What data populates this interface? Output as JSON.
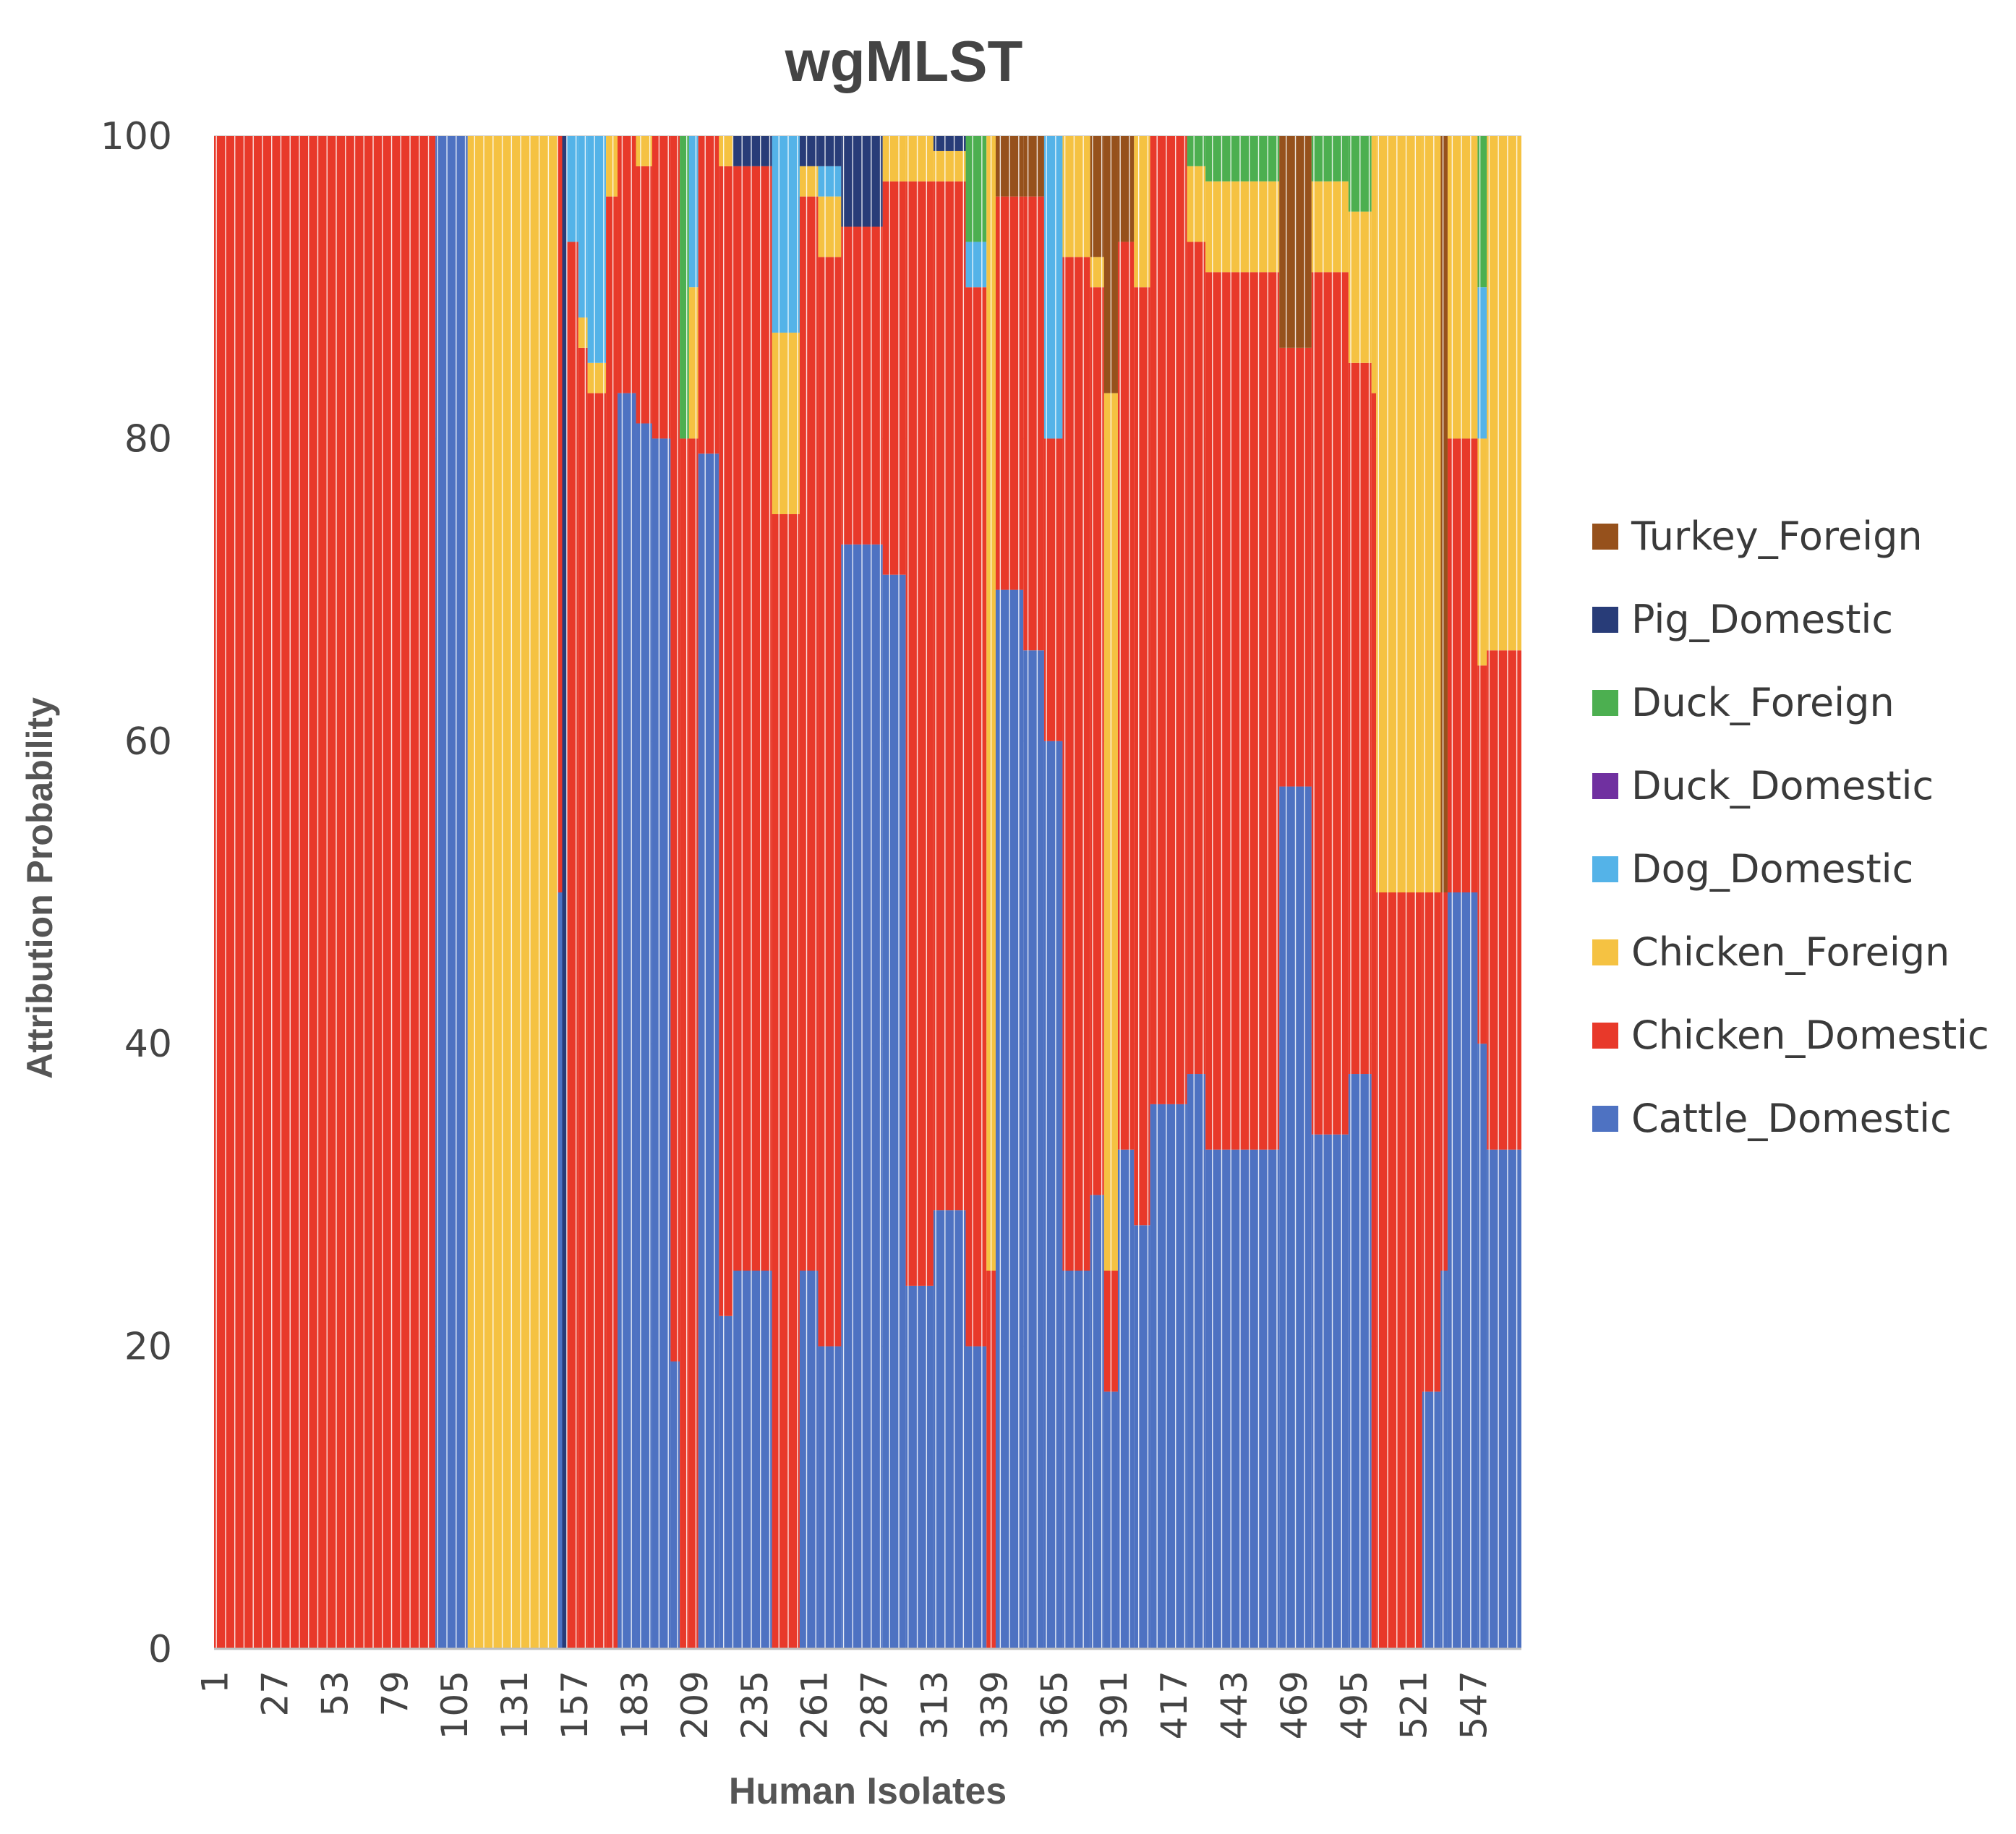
{
  "chart_data": {
    "type": "bar",
    "stacked": true,
    "title": "wgMLST",
    "xlabel": "Human Isolates",
    "ylabel": "Attribution Probability",
    "ylim": [
      0,
      100
    ],
    "yticks": [
      "0",
      "20",
      "40",
      "60",
      "80",
      "100"
    ],
    "xticks": [
      "1",
      "27",
      "53",
      "79",
      "105",
      "131",
      "157",
      "183",
      "209",
      "235",
      "261",
      "287",
      "313",
      "339",
      "365",
      "391",
      "417",
      "443",
      "469",
      "495",
      "521",
      "547"
    ],
    "x_count": 567,
    "legend_position": "right",
    "legend": [
      "Turkey_Foreign",
      "Pig_Domestic",
      "Duck_Foreign",
      "Duck_Domestic",
      "Dog_Domestic",
      "Chicken_Foreign",
      "Chicken_Domestic",
      "Cattle_Domestic"
    ],
    "colors": {
      "Cattle_Domestic": "#4e72c2",
      "Chicken_Domestic": "#e8392a",
      "Chicken_Foreign": "#f5c242",
      "Dog_Domestic": "#54b3e8",
      "Duck_Domestic": "#7030a0",
      "Duck_Foreign": "#4caf50",
      "Pig_Domestic": "#283c78",
      "Turkey_Foreign": "#96511c"
    },
    "stack_order": [
      "Cattle_Domestic",
      "Chicken_Domestic",
      "Chicken_Foreign",
      "Dog_Domestic",
      "Duck_Domestic",
      "Duck_Foreign",
      "Pig_Domestic",
      "Turkey_Foreign"
    ],
    "segments_note": "Each segment covers isolates from..to (inclusive) with approximate attribution probabilities (%) per source, read from the figure.",
    "segments": [
      {
        "from": 1,
        "to": 96,
        "values": {
          "Chicken_Domestic": 100
        }
      },
      {
        "from": 97,
        "to": 110,
        "values": {
          "Cattle_Domestic": 100
        }
      },
      {
        "from": 111,
        "to": 149,
        "values": {
          "Chicken_Foreign": 100
        }
      },
      {
        "from": 150,
        "to": 151,
        "values": {
          "Cattle_Domestic": 50,
          "Chicken_Domestic": 50
        }
      },
      {
        "from": 152,
        "to": 153,
        "values": {
          "Pig_Domestic": 100
        }
      },
      {
        "from": 154,
        "to": 158,
        "values": {
          "Chicken_Domestic": 93,
          "Dog_Domestic": 7
        }
      },
      {
        "from": 159,
        "to": 162,
        "values": {
          "Chicken_Domestic": 86,
          "Chicken_Foreign": 2,
          "Dog_Domestic": 12
        }
      },
      {
        "from": 163,
        "to": 170,
        "values": {
          "Chicken_Domestic": 83,
          "Chicken_Foreign": 2,
          "Dog_Domestic": 15
        }
      },
      {
        "from": 171,
        "to": 175,
        "values": {
          "Chicken_Domestic": 96,
          "Chicken_Foreign": 4
        }
      },
      {
        "from": 176,
        "to": 183,
        "values": {
          "Cattle_Domestic": 83,
          "Chicken_Domestic": 17
        }
      },
      {
        "from": 184,
        "to": 190,
        "values": {
          "Cattle_Domestic": 81,
          "Chicken_Domestic": 17,
          "Chicken_Foreign": 2
        }
      },
      {
        "from": 191,
        "to": 198,
        "values": {
          "Cattle_Domestic": 80,
          "Chicken_Domestic": 20
        }
      },
      {
        "from": 199,
        "to": 202,
        "values": {
          "Cattle_Domestic": 19,
          "Chicken_Domestic": 81
        }
      },
      {
        "from": 203,
        "to": 206,
        "values": {
          "Chicken_Domestic": 80,
          "Duck_Foreign": 20
        }
      },
      {
        "from": 207,
        "to": 210,
        "values": {
          "Chicken_Domestic": 80,
          "Chicken_Foreign": 10,
          "Dog_Domestic": 10
        }
      },
      {
        "from": 211,
        "to": 219,
        "values": {
          "Cattle_Domestic": 79,
          "Chicken_Domestic": 21
        }
      },
      {
        "from": 220,
        "to": 225,
        "values": {
          "Cattle_Domestic": 22,
          "Chicken_Domestic": 76,
          "Chicken_Foreign": 2
        }
      },
      {
        "from": 226,
        "to": 242,
        "values": {
          "Cattle_Domestic": 25,
          "Chicken_Domestic": 73,
          "Pig_Domestic": 2
        }
      },
      {
        "from": 243,
        "to": 254,
        "values": {
          "Chicken_Domestic": 75,
          "Chicken_Foreign": 12,
          "Dog_Domestic": 13
        }
      },
      {
        "from": 255,
        "to": 262,
        "values": {
          "Cattle_Domestic": 25,
          "Chicken_Domestic": 71,
          "Chicken_Foreign": 2,
          "Pig_Domestic": 2
        }
      },
      {
        "from": 263,
        "to": 272,
        "values": {
          "Cattle_Domestic": 20,
          "Chicken_Domestic": 72,
          "Chicken_Foreign": 4,
          "Dog_Domestic": 2,
          "Pig_Domestic": 2
        }
      },
      {
        "from": 273,
        "to": 290,
        "values": {
          "Cattle_Domestic": 73,
          "Chicken_Domestic": 21,
          "Pig_Domestic": 6
        }
      },
      {
        "from": 291,
        "to": 300,
        "values": {
          "Cattle_Domestic": 71,
          "Chicken_Domestic": 26,
          "Chicken_Foreign": 3
        }
      },
      {
        "from": 301,
        "to": 312,
        "values": {
          "Cattle_Domestic": 24,
          "Chicken_Domestic": 73,
          "Chicken_Foreign": 3
        }
      },
      {
        "from": 313,
        "to": 326,
        "values": {
          "Cattle_Domestic": 29,
          "Chicken_Domestic": 68,
          "Chicken_Foreign": 2,
          "Pig_Domestic": 1
        }
      },
      {
        "from": 327,
        "to": 335,
        "values": {
          "Cattle_Domestic": 20,
          "Chicken_Domestic": 70,
          "Duck_Foreign": 7,
          "Dog_Domestic": 3
        }
      },
      {
        "from": 336,
        "to": 339,
        "values": {
          "Chicken_Domestic": 25,
          "Chicken_Foreign": 75
        }
      },
      {
        "from": 340,
        "to": 351,
        "values": {
          "Cattle_Domestic": 70,
          "Chicken_Domestic": 26,
          "Turkey_Foreign": 4
        }
      },
      {
        "from": 352,
        "to": 360,
        "values": {
          "Cattle_Domestic": 66,
          "Chicken_Domestic": 30,
          "Turkey_Foreign": 4
        }
      },
      {
        "from": 361,
        "to": 368,
        "values": {
          "Cattle_Domestic": 60,
          "Chicken_Domestic": 20,
          "Dog_Domestic": 20
        }
      },
      {
        "from": 369,
        "to": 380,
        "values": {
          "Cattle_Domestic": 25,
          "Chicken_Domestic": 67,
          "Chicken_Foreign": 8
        }
      },
      {
        "from": 381,
        "to": 386,
        "values": {
          "Cattle_Domestic": 30,
          "Chicken_Domestic": 60,
          "Chicken_Foreign": 2,
          "Turkey_Foreign": 8
        }
      },
      {
        "from": 387,
        "to": 392,
        "values": {
          "Cattle_Domestic": 17,
          "Chicken_Domestic": 8,
          "Chicken_Foreign": 58,
          "Turkey_Foreign": 17
        }
      },
      {
        "from": 393,
        "to": 399,
        "values": {
          "Cattle_Domestic": 33,
          "Chicken_Domestic": 60,
          "Turkey_Foreign": 7
        }
      },
      {
        "from": 400,
        "to": 406,
        "values": {
          "Cattle_Domestic": 28,
          "Chicken_Domestic": 62,
          "Chicken_Foreign": 10
        }
      },
      {
        "from": 407,
        "to": 422,
        "values": {
          "Cattle_Domestic": 36,
          "Chicken_Domestic": 64
        }
      },
      {
        "from": 423,
        "to": 430,
        "values": {
          "Cattle_Domestic": 38,
          "Chicken_Domestic": 55,
          "Chicken_Foreign": 5,
          "Duck_Foreign": 2
        }
      },
      {
        "from": 431,
        "to": 462,
        "values": {
          "Cattle_Domestic": 33,
          "Chicken_Domestic": 58,
          "Chicken_Foreign": 6,
          "Duck_Foreign": 3
        }
      },
      {
        "from": 463,
        "to": 476,
        "values": {
          "Cattle_Domestic": 57,
          "Chicken_Domestic": 29,
          "Turkey_Foreign": 14
        }
      },
      {
        "from": 477,
        "to": 492,
        "values": {
          "Cattle_Domestic": 34,
          "Chicken_Domestic": 57,
          "Chicken_Foreign": 6,
          "Duck_Foreign": 3
        }
      },
      {
        "from": 493,
        "to": 502,
        "values": {
          "Cattle_Domestic": 38,
          "Chicken_Domestic": 47,
          "Chicken_Foreign": 10,
          "Duck_Foreign": 5
        }
      },
      {
        "from": 503,
        "to": 504,
        "values": {
          "Chicken_Domestic": 83,
          "Chicken_Foreign": 17
        }
      },
      {
        "from": 505,
        "to": 524,
        "values": {
          "Chicken_Domestic": 50,
          "Chicken_Foreign": 50
        }
      },
      {
        "from": 525,
        "to": 532,
        "values": {
          "Cattle_Domestic": 17,
          "Chicken_Domestic": 33,
          "Chicken_Foreign": 50
        }
      },
      {
        "from": 533,
        "to": 535,
        "values": {
          "Cattle_Domestic": 25,
          "Chicken_Domestic": 25,
          "Turkey_Foreign": 50
        }
      },
      {
        "from": 536,
        "to": 548,
        "values": {
          "Cattle_Domestic": 50,
          "Chicken_Domestic": 30,
          "Chicken_Foreign": 20
        }
      },
      {
        "from": 549,
        "to": 552,
        "values": {
          "Cattle_Domestic": 40,
          "Chicken_Domestic": 25,
          "Chicken_Foreign": 15,
          "Dog_Domestic": 10,
          "Duck_Foreign": 10
        }
      },
      {
        "from": 553,
        "to": 567,
        "values": {
          "Cattle_Domestic": 33,
          "Chicken_Domestic": 33,
          "Chicken_Foreign": 34
        }
      }
    ]
  }
}
